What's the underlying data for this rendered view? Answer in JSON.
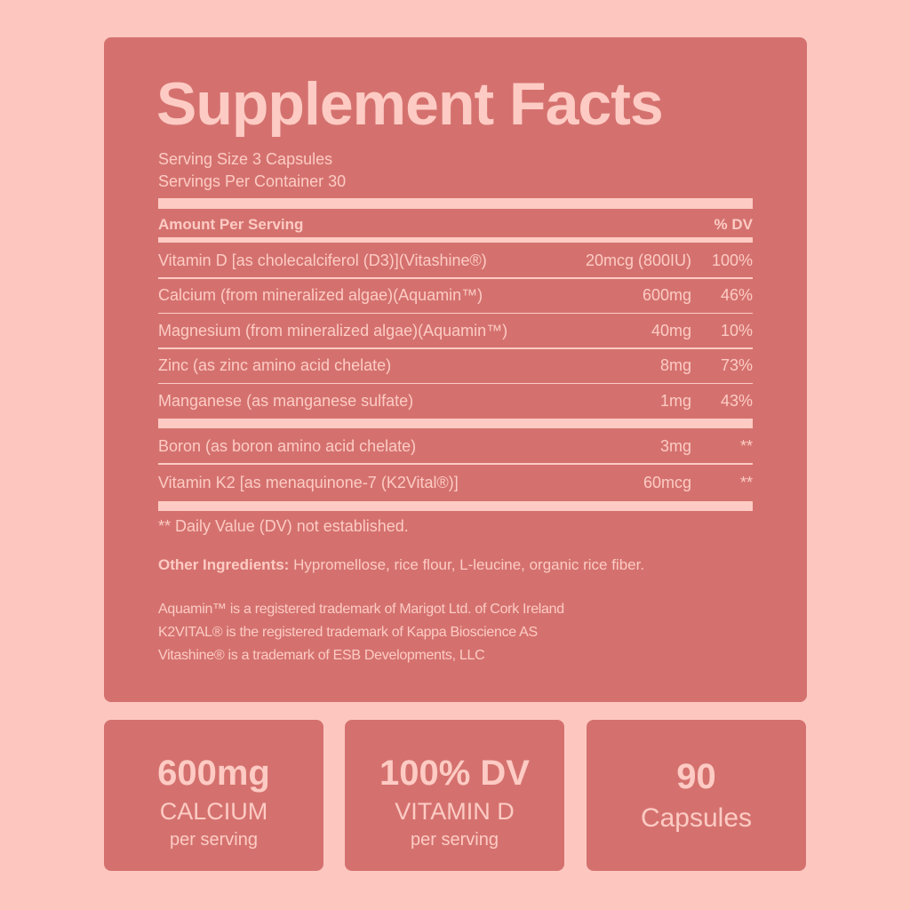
{
  "label": {
    "title": "Supplement Facts",
    "serving_size": "Serving Size 3 Capsules",
    "servings_per_container": "Servings Per Container 30",
    "header": {
      "amount": "Amount Per Serving",
      "dv": "% DV"
    },
    "rows": [
      {
        "name": "Vitamin D [as cholecalciferol (D3)](Vitashine®)",
        "amount": "20mcg (800IU)",
        "dv": "100%"
      },
      {
        "name": "Calcium (from mineralized algae)(Aquamin™)",
        "amount": "600mg",
        "dv": "46%"
      },
      {
        "name": "Magnesium (from mineralized algae)(Aquamin™)",
        "amount": "40mg",
        "dv": "10%"
      },
      {
        "name": "Zinc (as zinc amino acid chelate)",
        "amount": "8mg",
        "dv": "73%"
      },
      {
        "name": "Manganese (as manganese sulfate)",
        "amount": "1mg",
        "dv": "43%"
      }
    ],
    "extra_rows": [
      {
        "name": "Boron (as boron amino acid chelate)",
        "amount": "3mg",
        "dv": "**"
      },
      {
        "name": "Vitamin K2 [as menaquinone-7 (K2Vital®)]",
        "amount": "60mcg",
        "dv": "**"
      }
    ],
    "footnote": "** Daily Value (DV) not established.",
    "other_ingredients": {
      "label": "Other Ingredients:",
      "text": "Hypromellose, rice flour, L-leucine, organic rice fiber."
    },
    "trademarks": [
      "Aquamin™ is a registered trademark of Marigot Ltd. of Cork Ireland",
      "K2VITAL® is the registered trademark of Kappa Bioscience AS",
      "Vitashine® is a trademark of ESB Developments, LLC"
    ]
  },
  "cards": [
    {
      "value": "600mg",
      "label": "CALCIUM",
      "sub": "per serving"
    },
    {
      "value": "100% DV",
      "label": "VITAMIN D",
      "sub": "per serving"
    },
    {
      "value": "90",
      "label": "Capsules"
    }
  ]
}
